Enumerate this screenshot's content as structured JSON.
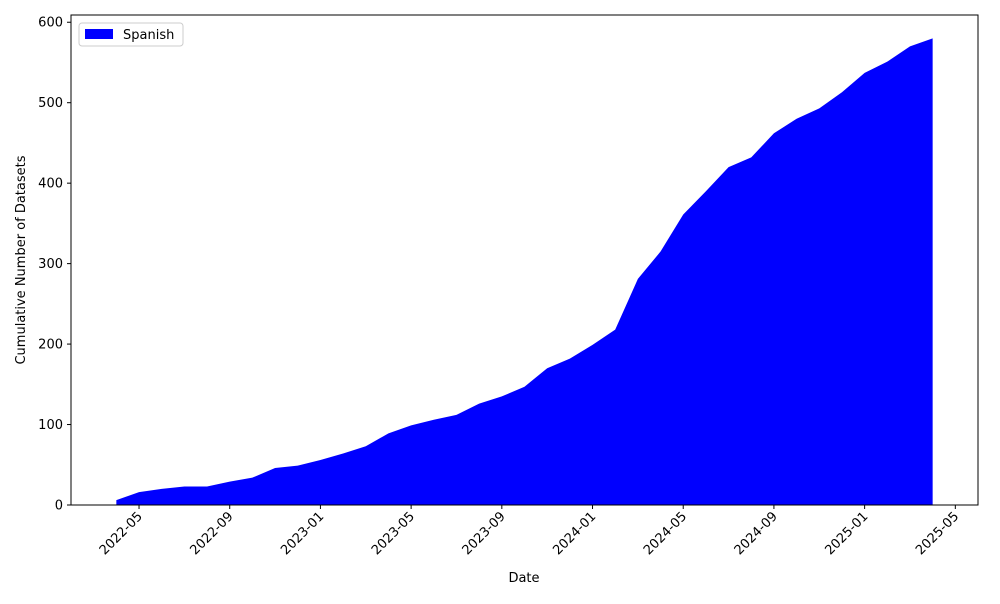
{
  "chart_data": {
    "type": "area",
    "x_label": "Date",
    "y_label": "Cumulative Number of Datasets",
    "x": [
      "2022-04",
      "2022-05",
      "2022-06",
      "2022-07",
      "2022-08",
      "2022-09",
      "2022-10",
      "2022-11",
      "2022-12",
      "2023-01",
      "2023-02",
      "2023-03",
      "2023-04",
      "2023-05",
      "2023-06",
      "2023-07",
      "2023-08",
      "2023-09",
      "2023-10",
      "2023-11",
      "2023-12",
      "2024-01",
      "2024-02",
      "2024-03",
      "2024-04",
      "2024-05",
      "2024-06",
      "2024-07",
      "2024-08",
      "2024-09",
      "2024-10",
      "2024-11",
      "2024-12",
      "2025-01",
      "2025-02",
      "2025-03",
      "2025-04"
    ],
    "series": [
      {
        "name": "Spanish",
        "color": "blue",
        "values": [
          6,
          16,
          20,
          23,
          23,
          29,
          34,
          46,
          49,
          56,
          64,
          73,
          89,
          99,
          106,
          112,
          126,
          135,
          147,
          170,
          182,
          199,
          218,
          281,
          315,
          361,
          390,
          420,
          432,
          462,
          480,
          493,
          513,
          537,
          551,
          570,
          580
        ]
      }
    ],
    "xlim": [
      "2022-02",
      "2025-06"
    ],
    "xticks": [
      "2022-05",
      "2022-09",
      "2023-01",
      "2023-05",
      "2023-09",
      "2024-01",
      "2024-05",
      "2024-09",
      "2025-01",
      "2025-05"
    ],
    "ylim": [
      0,
      609
    ],
    "yticks": [
      0,
      100,
      200,
      300,
      400,
      500,
      600
    ],
    "legend": "upper left"
  }
}
